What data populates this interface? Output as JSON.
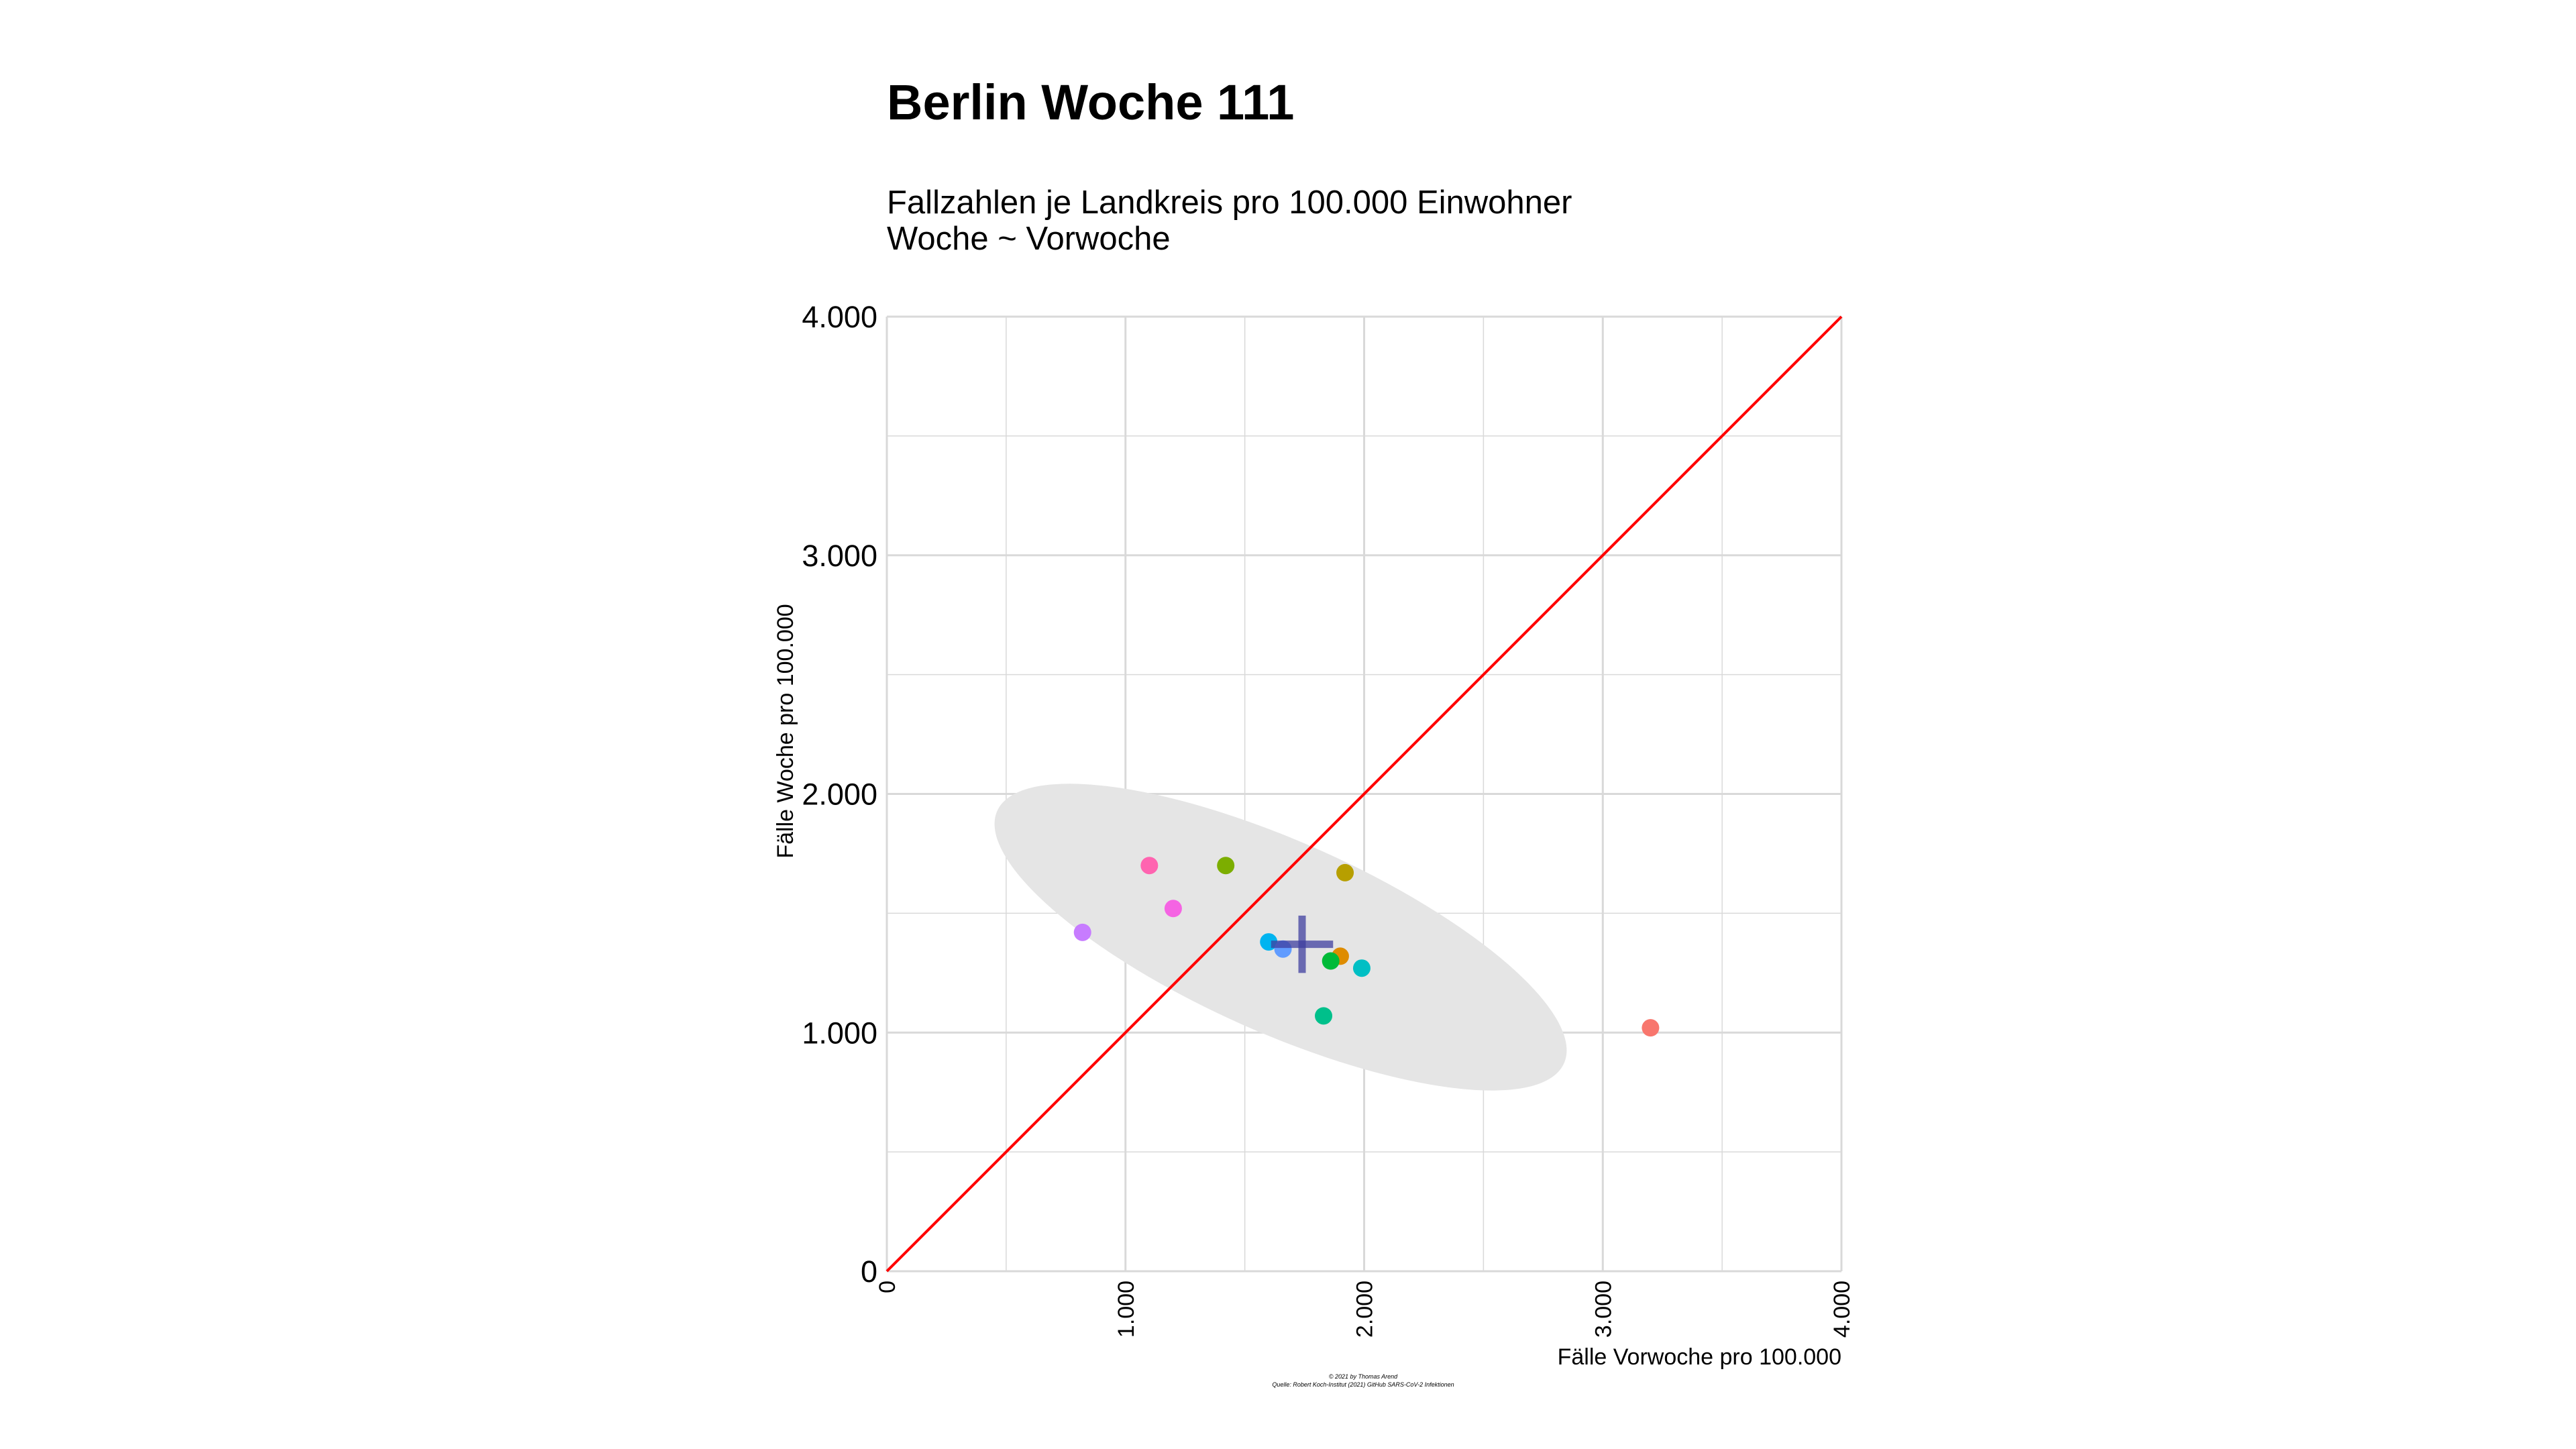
{
  "chart_data": {
    "type": "scatter",
    "title": "Berlin Woche 111",
    "subtitle_lines": [
      "Fallzahlen je Landkreis pro 100.000 Einwohner",
      "Woche ~ Vorwoche"
    ],
    "xlabel": "Fälle Vorwoche pro 100.000",
    "ylabel": "Fälle Woche pro 100.000",
    "xlim": [
      0,
      4000
    ],
    "ylim": [
      0,
      4000
    ],
    "x_ticks": [
      0,
      1000,
      2000,
      3000,
      4000
    ],
    "x_tick_labels": [
      "0",
      "1.000",
      "2.000",
      "3.000",
      "4.000"
    ],
    "y_ticks": [
      0,
      1000,
      2000,
      3000,
      4000
    ],
    "y_tick_labels": [
      "0",
      "1.000",
      "2.000",
      "3.000",
      "4.000"
    ],
    "grid": true,
    "reference_line": {
      "slope": 1,
      "intercept": 0,
      "color": "#ff0000"
    },
    "points": [
      {
        "x": 3200,
        "y": 1020,
        "color": "#f8766d"
      },
      {
        "x": 1920,
        "y": 1670,
        "color": "#b79f00"
      },
      {
        "x": 1420,
        "y": 1700,
        "color": "#7cae00"
      },
      {
        "x": 1900,
        "y": 1320,
        "color": "#de8c00"
      },
      {
        "x": 1860,
        "y": 1300,
        "color": "#00ba38"
      },
      {
        "x": 1830,
        "y": 1070,
        "color": "#00c08b"
      },
      {
        "x": 1990,
        "y": 1270,
        "color": "#00bfc4"
      },
      {
        "x": 1600,
        "y": 1380,
        "color": "#00b4f0"
      },
      {
        "x": 1660,
        "y": 1350,
        "color": "#619cff"
      },
      {
        "x": 820,
        "y": 1420,
        "color": "#c77cff"
      },
      {
        "x": 1200,
        "y": 1520,
        "color": "#f564e3"
      },
      {
        "x": 1100,
        "y": 1700,
        "color": "#ff64b0"
      }
    ],
    "mean_marker": {
      "x": 1740,
      "y": 1370,
      "x_halfwidth": 130,
      "y_halfheight": 120,
      "color": "#3f3f9f"
    },
    "confidence_ellipse": {
      "cx": 1650,
      "cy": 1400,
      "rx": 1300,
      "ry": 400,
      "angle_deg": -24,
      "color": "#e5e5e5"
    },
    "caption_lines": [
      "© 2021 by Thomas Arend",
      "Quelle: Robert Koch-Institut (2021) GitHub SARS-CoV-2 Infektionen"
    ]
  },
  "colors": {
    "background": "#ffffff",
    "grid": "#d9d9d9",
    "ellipse": "#e5e5e5",
    "reference_line": "#ff0000",
    "mean_marker": "#3f3f9f"
  }
}
